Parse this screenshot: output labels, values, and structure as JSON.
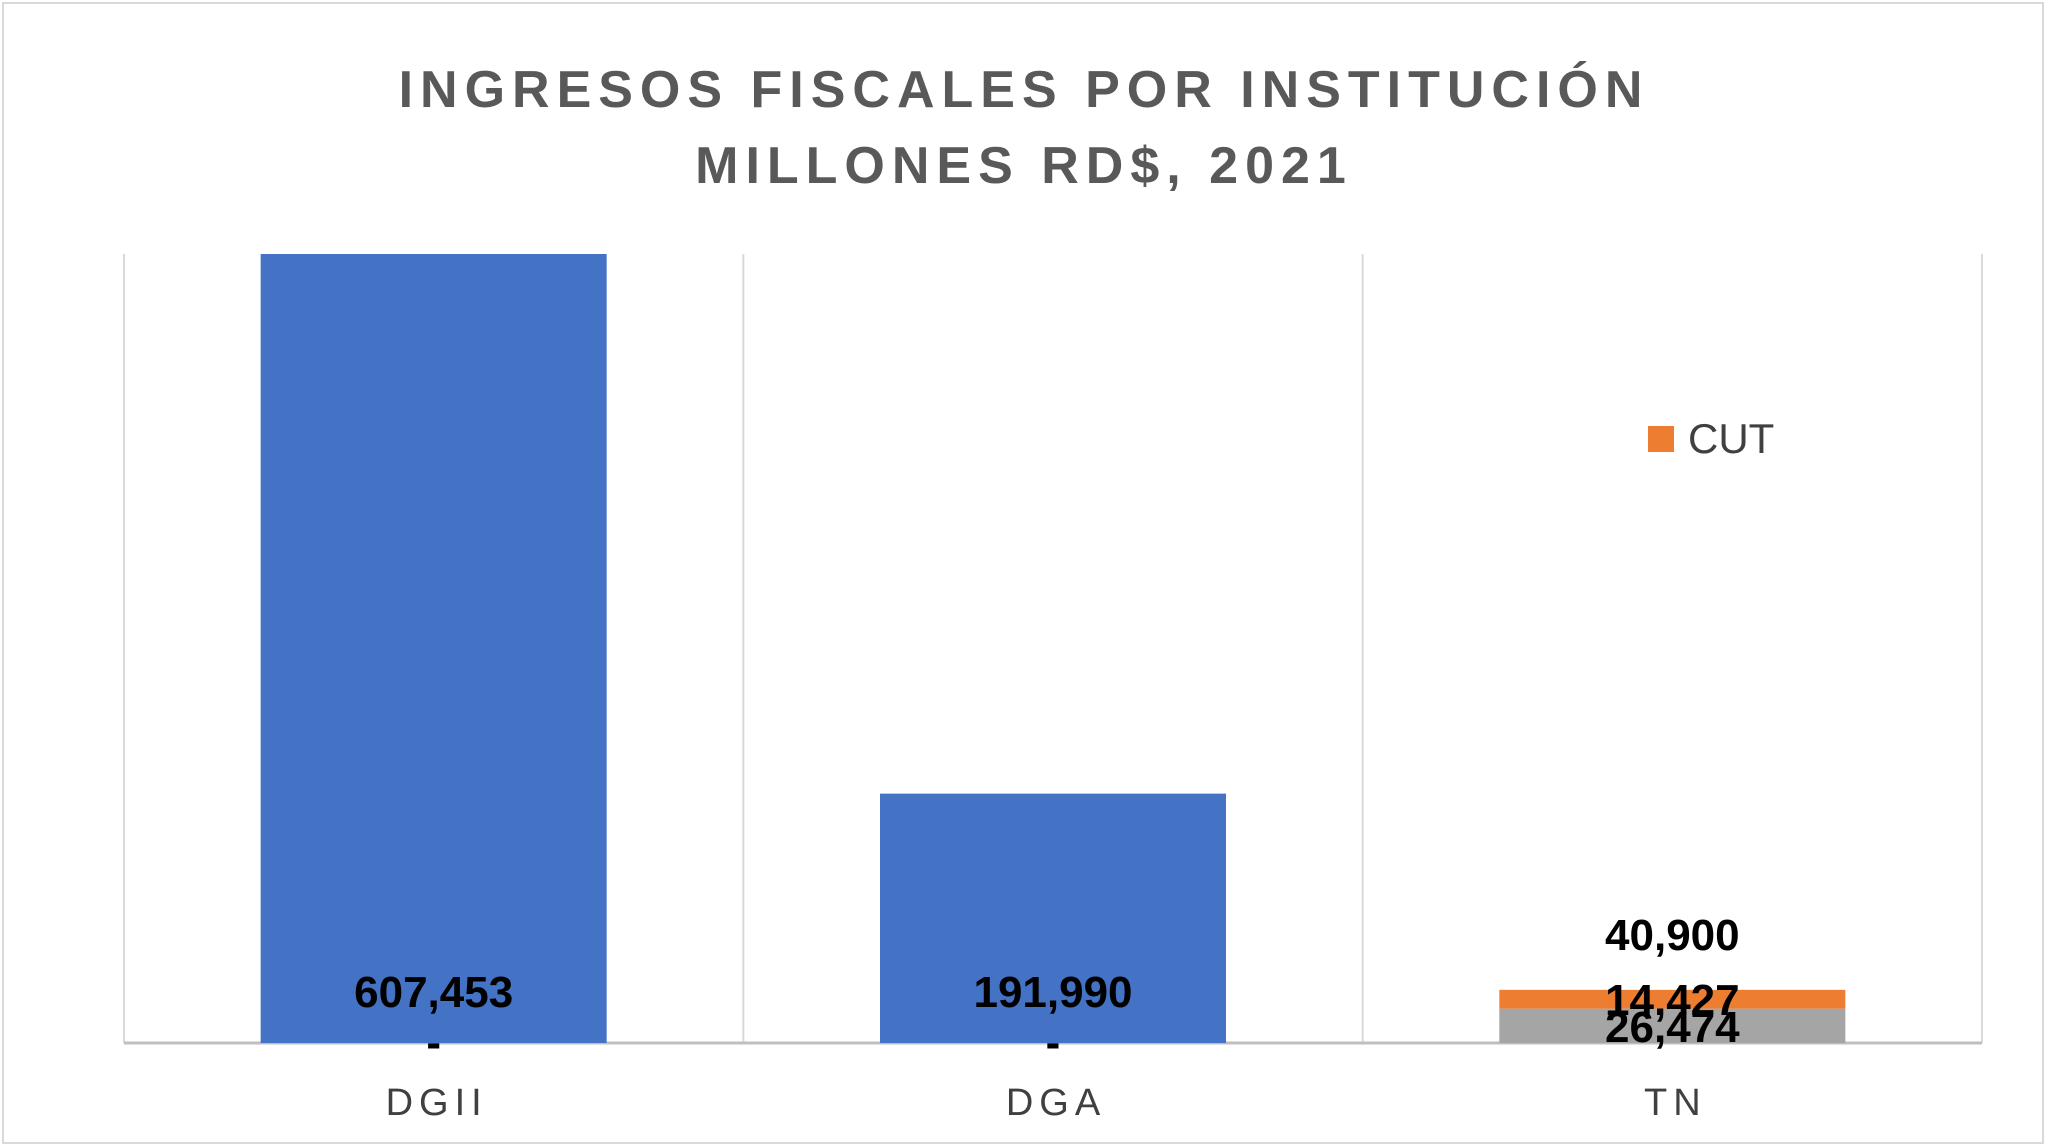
{
  "chart_data": {
    "type": "bar",
    "title": "INGRESOS FISCALES POR INSTITUCIÓN",
    "subtitle": "MILLONES RD$, 2021",
    "categories": [
      "DGII",
      "DGA",
      "TN"
    ],
    "series": [
      {
        "name": "",
        "color": "#4472c4",
        "values": [
          607453,
          191990,
          null
        ],
        "labels": [
          "607,453",
          "191,990",
          ""
        ]
      },
      {
        "name": "",
        "color": "#a5a5a5",
        "values": [
          null,
          null,
          26474
        ],
        "labels": [
          "",
          "",
          "26,474"
        ]
      },
      {
        "name": "CUT",
        "color": "#ed7d31",
        "values": [
          null,
          null,
          14427
        ],
        "labels": [
          "",
          "",
          "14,427"
        ]
      }
    ],
    "totals": [
      null,
      null,
      40900
    ],
    "total_labels": [
      "",
      "",
      "40,900"
    ],
    "zero_labels": [
      "-",
      "-",
      ""
    ],
    "ylim": [
      0,
      607453
    ],
    "legend": {
      "position": "right",
      "entries": [
        "CUT"
      ]
    },
    "grid": "vertical"
  }
}
